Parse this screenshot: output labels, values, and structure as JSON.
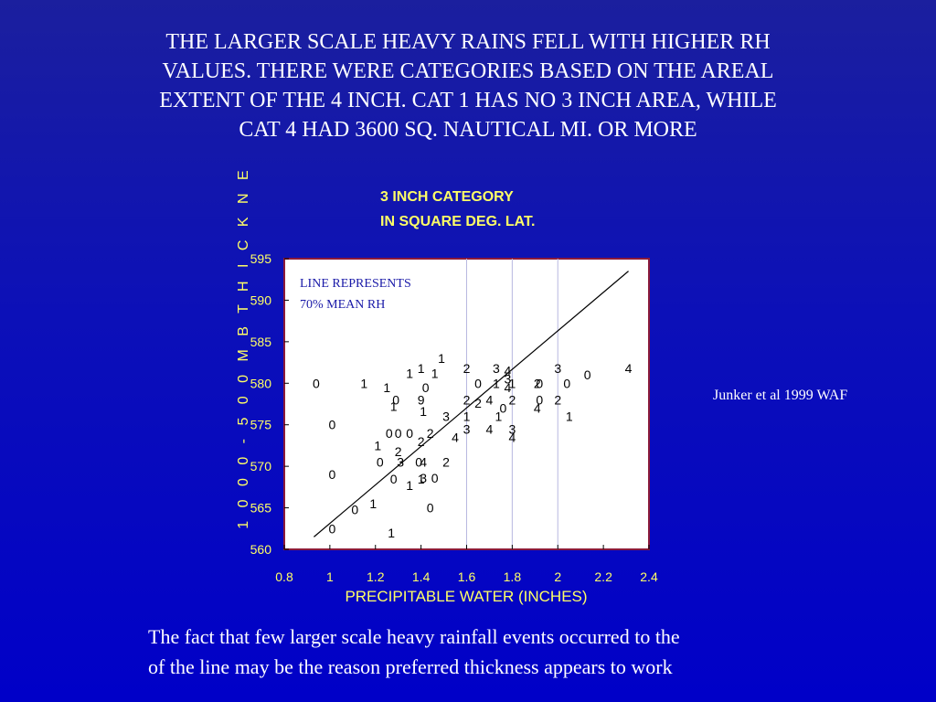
{
  "slide": {
    "title_lines": [
      "THE LARGER SCALE HEAVY RAINS FELL WITH HIGHER RH",
      "VALUES. THERE WERE CATEGORIES BASED ON THE AREAL",
      "EXTENT OF THE 4 INCH. CAT 1 HAS NO 3 INCH AREA, WHILE",
      "CAT 4 HAD 3600 SQ. NAUTICAL MI. OR MORE"
    ],
    "citation": "Junker et al 1999 WAF",
    "footer_lines": [
      "The fact that few larger scale heavy rainfall events occurred to the",
      "of the line may be the reason preferred thickness appears to work"
    ]
  },
  "colors": {
    "background_top": "#1b1f9e",
    "background_bottom": "#0000c8",
    "plot_area": "#ffffff",
    "plot_border": "#8b1a3a",
    "label_yellow": "#ffff66",
    "annotation_blue": "#1a1aa8"
  },
  "chart_data": {
    "type": "scatter",
    "title_lines": [
      "3 INCH CATEGORY",
      "IN SQUARE DEG. LAT."
    ],
    "xlabel": "PRECIPITABLE WATER (INCHES)",
    "ylabel": "1 0 0 0 - 5 0 0   M B   T H I C K N E",
    "xlim": [
      0.8,
      2.4
    ],
    "ylim": [
      560,
      595
    ],
    "x_ticks": [
      "0.8",
      "1",
      "1.2",
      "1.4",
      "1.6",
      "1.8",
      "2",
      "2.2",
      "2.4"
    ],
    "y_ticks": [
      "560",
      "565",
      "570",
      "575",
      "580",
      "585",
      "590",
      "595"
    ],
    "grid_x": [
      1.6,
      1.8,
      2.0
    ],
    "annotation_lines": [
      "LINE REPRESENTS",
      "70% MEAN RH"
    ],
    "line": {
      "x": [
        0.93,
        2.31
      ],
      "y": [
        561.5,
        593.5
      ]
    },
    "points": [
      {
        "x": 0.94,
        "y": 580.0,
        "label": "0"
      },
      {
        "x": 1.15,
        "y": 580.0,
        "label": "1"
      },
      {
        "x": 1.01,
        "y": 575.0,
        "label": "0"
      },
      {
        "x": 1.01,
        "y": 569.0,
        "label": "0"
      },
      {
        "x": 1.01,
        "y": 562.5,
        "label": "0"
      },
      {
        "x": 1.11,
        "y": 564.8,
        "label": "0"
      },
      {
        "x": 1.19,
        "y": 565.5,
        "label": "1"
      },
      {
        "x": 1.27,
        "y": 562.0,
        "label": "1"
      },
      {
        "x": 1.21,
        "y": 572.5,
        "label": "1"
      },
      {
        "x": 1.22,
        "y": 570.5,
        "label": "0"
      },
      {
        "x": 1.31,
        "y": 570.5,
        "label": "3"
      },
      {
        "x": 1.3,
        "y": 571.8,
        "label": "2"
      },
      {
        "x": 1.28,
        "y": 568.5,
        "label": "0"
      },
      {
        "x": 1.35,
        "y": 567.7,
        "label": "1"
      },
      {
        "x": 1.26,
        "y": 574.0,
        "label": "0"
      },
      {
        "x": 1.3,
        "y": 574.0,
        "label": "0"
      },
      {
        "x": 1.35,
        "y": 574.0,
        "label": "0"
      },
      {
        "x": 1.4,
        "y": 573.0,
        "label": "2"
      },
      {
        "x": 1.44,
        "y": 574.0,
        "label": "2"
      },
      {
        "x": 1.39,
        "y": 570.5,
        "label": "0"
      },
      {
        "x": 1.41,
        "y": 570.5,
        "label": "4"
      },
      {
        "x": 1.41,
        "y": 568.6,
        "label": "3"
      },
      {
        "x": 1.4,
        "y": 568.5,
        "label": "1"
      },
      {
        "x": 1.46,
        "y": 568.6,
        "label": "0"
      },
      {
        "x": 1.51,
        "y": 570.5,
        "label": "2"
      },
      {
        "x": 1.44,
        "y": 565.0,
        "label": "0"
      },
      {
        "x": 1.25,
        "y": 579.5,
        "label": "1"
      },
      {
        "x": 1.29,
        "y": 578.0,
        "label": "0"
      },
      {
        "x": 1.28,
        "y": 577.2,
        "label": "1"
      },
      {
        "x": 1.35,
        "y": 581.2,
        "label": "1"
      },
      {
        "x": 1.4,
        "y": 581.8,
        "label": "1"
      },
      {
        "x": 1.46,
        "y": 581.2,
        "label": "1"
      },
      {
        "x": 1.49,
        "y": 583.0,
        "label": "1"
      },
      {
        "x": 1.42,
        "y": 579.5,
        "label": "0"
      },
      {
        "x": 1.4,
        "y": 578.0,
        "label": "9"
      },
      {
        "x": 1.41,
        "y": 576.6,
        "label": "1"
      },
      {
        "x": 1.51,
        "y": 576.0,
        "label": "3"
      },
      {
        "x": 1.55,
        "y": 573.5,
        "label": "4"
      },
      {
        "x": 1.6,
        "y": 574.5,
        "label": "3"
      },
      {
        "x": 1.6,
        "y": 576.0,
        "label": "1"
      },
      {
        "x": 1.6,
        "y": 578.0,
        "label": "2"
      },
      {
        "x": 1.6,
        "y": 581.8,
        "label": "2"
      },
      {
        "x": 1.65,
        "y": 580.0,
        "label": "0"
      },
      {
        "x": 1.65,
        "y": 577.6,
        "label": "2"
      },
      {
        "x": 1.7,
        "y": 578.0,
        "label": "4"
      },
      {
        "x": 1.7,
        "y": 574.5,
        "label": "4"
      },
      {
        "x": 1.73,
        "y": 581.8,
        "label": "3"
      },
      {
        "x": 1.73,
        "y": 580.0,
        "label": "1"
      },
      {
        "x": 1.74,
        "y": 576.0,
        "label": "1"
      },
      {
        "x": 1.76,
        "y": 577.0,
        "label": "0"
      },
      {
        "x": 1.78,
        "y": 581.5,
        "label": "4"
      },
      {
        "x": 1.78,
        "y": 580.5,
        "label": "3"
      },
      {
        "x": 1.78,
        "y": 579.5,
        "label": "4"
      },
      {
        "x": 1.8,
        "y": 580.0,
        "label": "1"
      },
      {
        "x": 1.8,
        "y": 578.0,
        "label": "2"
      },
      {
        "x": 1.8,
        "y": 574.5,
        "label": "3"
      },
      {
        "x": 1.8,
        "y": 573.5,
        "label": "4"
      },
      {
        "x": 1.91,
        "y": 580.0,
        "label": "2"
      },
      {
        "x": 1.92,
        "y": 580.0,
        "label": "0"
      },
      {
        "x": 1.92,
        "y": 578.0,
        "label": "0"
      },
      {
        "x": 1.91,
        "y": 577.0,
        "label": "4"
      },
      {
        "x": 2.0,
        "y": 581.8,
        "label": "3"
      },
      {
        "x": 2.0,
        "y": 578.0,
        "label": "2"
      },
      {
        "x": 2.04,
        "y": 580.0,
        "label": "0"
      },
      {
        "x": 2.05,
        "y": 576.0,
        "label": "1"
      },
      {
        "x": 2.13,
        "y": 581.0,
        "label": "0"
      },
      {
        "x": 2.31,
        "y": 581.8,
        "label": "4"
      }
    ]
  }
}
